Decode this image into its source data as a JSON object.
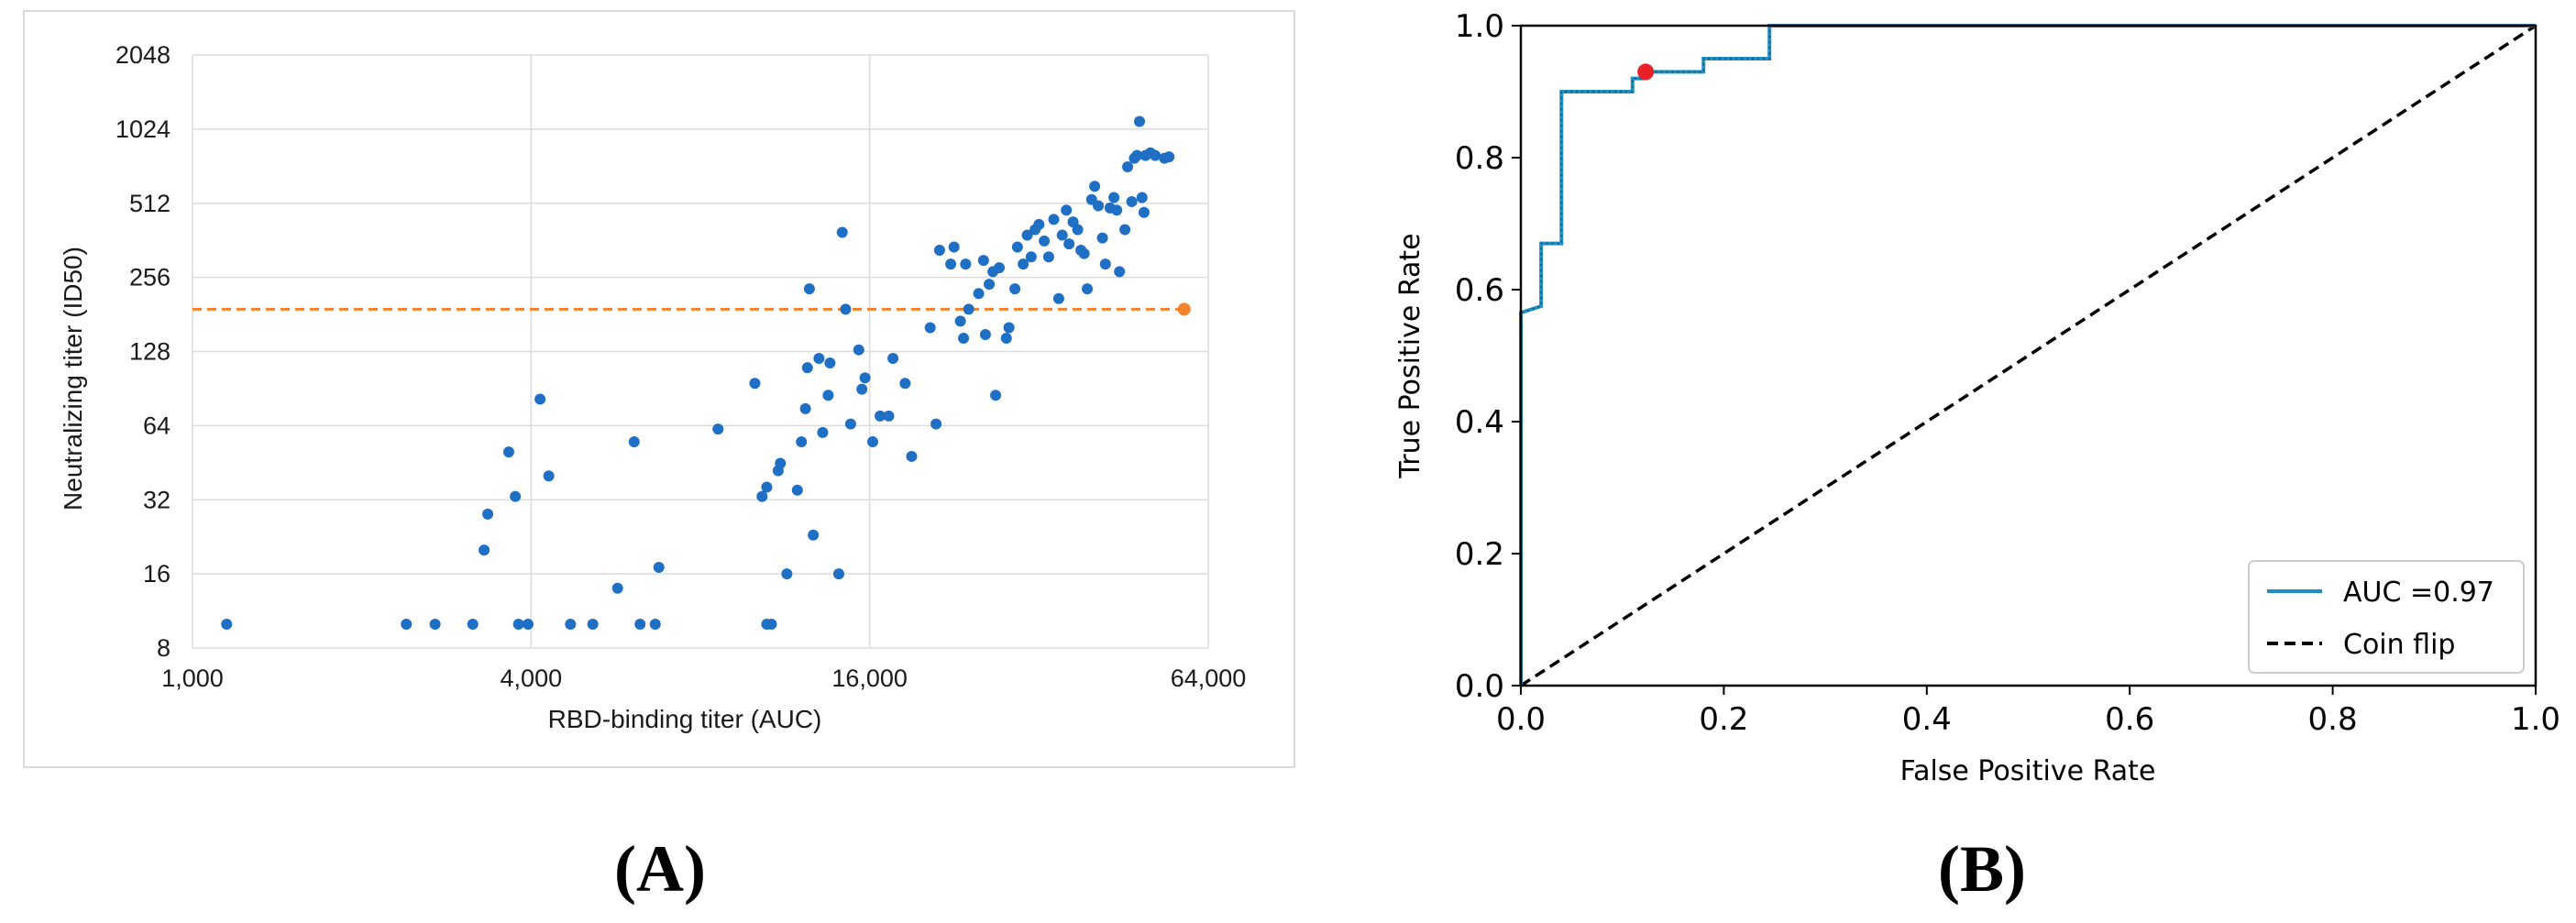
{
  "chart_data": [
    {
      "panel_label": "(A)",
      "type": "scatter",
      "title": "",
      "xlabel": "RBD-binding titer (AUC)",
      "ylabel": "Neutralizing titer (ID50)",
      "xscale": "log2",
      "yscale": "log2",
      "xlim": [
        1000,
        64000
      ],
      "ylim": [
        8,
        2048
      ],
      "x_ticks": [
        1000,
        4000,
        16000,
        64000
      ],
      "x_tick_labels": [
        "1,000",
        "4,000",
        "16,000",
        "64,000"
      ],
      "y_ticks": [
        8,
        16,
        32,
        64,
        128,
        256,
        512,
        1024,
        2048
      ],
      "y_tick_labels": [
        "8",
        "16",
        "32",
        "64",
        "128",
        "256",
        "512",
        "1024",
        "2048"
      ],
      "grid": true,
      "colors": {
        "points": "#1f6fc5",
        "threshold": "#f5822a"
      },
      "threshold": {
        "y": 190,
        "x_start": 1000,
        "x_end": 58000,
        "marker_x": 58000
      },
      "points": [
        [
          1150,
          10
        ],
        [
          2400,
          10
        ],
        [
          2700,
          10
        ],
        [
          3150,
          10
        ],
        [
          3300,
          20
        ],
        [
          3350,
          28
        ],
        [
          3650,
          50
        ],
        [
          3750,
          33
        ],
        [
          3800,
          10
        ],
        [
          3950,
          10
        ],
        [
          4150,
          82
        ],
        [
          4300,
          40
        ],
        [
          4700,
          10
        ],
        [
          5150,
          10
        ],
        [
          5700,
          14
        ],
        [
          6100,
          55
        ],
        [
          6250,
          10
        ],
        [
          6650,
          10
        ],
        [
          6750,
          17
        ],
        [
          8600,
          62
        ],
        [
          10000,
          95
        ],
        [
          10300,
          33
        ],
        [
          10500,
          10
        ],
        [
          10500,
          36
        ],
        [
          10700,
          10
        ],
        [
          11000,
          42
        ],
        [
          11100,
          45
        ],
        [
          11400,
          16
        ],
        [
          11900,
          35
        ],
        [
          12100,
          55
        ],
        [
          12300,
          75
        ],
        [
          12400,
          110
        ],
        [
          12500,
          230
        ],
        [
          12700,
          23
        ],
        [
          13000,
          120
        ],
        [
          13200,
          60
        ],
        [
          13500,
          85
        ],
        [
          13600,
          115
        ],
        [
          14100,
          16
        ],
        [
          14300,
          390
        ],
        [
          14500,
          190
        ],
        [
          14800,
          65
        ],
        [
          15300,
          130
        ],
        [
          15500,
          90
        ],
        [
          15700,
          100
        ],
        [
          16200,
          55
        ],
        [
          16700,
          70
        ],
        [
          17300,
          70
        ],
        [
          17600,
          120
        ],
        [
          18500,
          95
        ],
        [
          19000,
          48
        ],
        [
          20500,
          160
        ],
        [
          21000,
          65
        ],
        [
          21300,
          330
        ],
        [
          22300,
          290
        ],
        [
          22600,
          340
        ],
        [
          23200,
          170
        ],
        [
          23500,
          145
        ],
        [
          23700,
          290
        ],
        [
          24000,
          190
        ],
        [
          25000,
          220
        ],
        [
          25500,
          300
        ],
        [
          25700,
          150
        ],
        [
          26100,
          240
        ],
        [
          26500,
          270
        ],
        [
          26800,
          85
        ],
        [
          27200,
          280
        ],
        [
          28000,
          145
        ],
        [
          28300,
          160
        ],
        [
          29000,
          230
        ],
        [
          29300,
          340
        ],
        [
          30000,
          290
        ],
        [
          30500,
          380
        ],
        [
          31000,
          310
        ],
        [
          31500,
          400
        ],
        [
          32000,
          420
        ],
        [
          32700,
          360
        ],
        [
          33300,
          310
        ],
        [
          34000,
          440
        ],
        [
          34700,
          210
        ],
        [
          35200,
          380
        ],
        [
          35800,
          480
        ],
        [
          36200,
          350
        ],
        [
          36800,
          430
        ],
        [
          37500,
          400
        ],
        [
          38000,
          330
        ],
        [
          38500,
          320
        ],
        [
          39000,
          230
        ],
        [
          39700,
          530
        ],
        [
          40200,
          600
        ],
        [
          40800,
          500
        ],
        [
          41500,
          370
        ],
        [
          42000,
          290
        ],
        [
          42800,
          490
        ],
        [
          43500,
          540
        ],
        [
          44000,
          480
        ],
        [
          44500,
          270
        ],
        [
          45500,
          400
        ],
        [
          46000,
          720
        ],
        [
          46800,
          520
        ],
        [
          47300,
          780
        ],
        [
          47800,
          800
        ],
        [
          48300,
          1100
        ],
        [
          48800,
          540
        ],
        [
          49200,
          470
        ],
        [
          49500,
          800
        ],
        [
          50500,
          820
        ],
        [
          51500,
          800
        ],
        [
          53500,
          780
        ],
        [
          54500,
          790
        ]
      ]
    },
    {
      "panel_label": "(B)",
      "type": "line",
      "title": "",
      "xlabel": "False Positive Rate",
      "ylabel": "True Positive Rate",
      "xlim": [
        0.0,
        1.0
      ],
      "ylim": [
        0.0,
        1.0
      ],
      "x_ticks": [
        0.0,
        0.2,
        0.4,
        0.6,
        0.8,
        1.0
      ],
      "x_tick_labels": [
        "0.0",
        "0.2",
        "0.4",
        "0.6",
        "0.8",
        "1.0"
      ],
      "y_ticks": [
        0.0,
        0.2,
        0.4,
        0.6,
        0.8,
        1.0
      ],
      "y_tick_labels": [
        "0.0",
        "0.2",
        "0.4",
        "0.6",
        "0.8",
        "1.0"
      ],
      "grid": false,
      "legend_position": "bottom-right",
      "series": [
        {
          "name": "AUC =0.97",
          "color": "#1f8fc4",
          "style": "solid",
          "x": [
            0.0,
            0.0,
            0.0,
            0.0,
            0.02,
            0.02,
            0.04,
            0.04,
            0.06,
            0.06,
            0.11,
            0.11,
            0.12,
            0.12,
            0.18,
            0.18,
            0.245,
            0.245,
            1.0
          ],
          "y": [
            0.0,
            0.45,
            0.45,
            0.565,
            0.575,
            0.67,
            0.67,
            0.9,
            0.9,
            0.9,
            0.9,
            0.92,
            0.92,
            0.93,
            0.93,
            0.95,
            0.95,
            1.0,
            1.0
          ]
        },
        {
          "name": "Coin flip",
          "color": "#000000",
          "style": "dashed",
          "x": [
            0.0,
            1.0
          ],
          "y": [
            0.0,
            1.0
          ]
        }
      ],
      "highlight_point": {
        "x": 0.123,
        "y": 0.93,
        "color": "#e8202a"
      }
    }
  ]
}
